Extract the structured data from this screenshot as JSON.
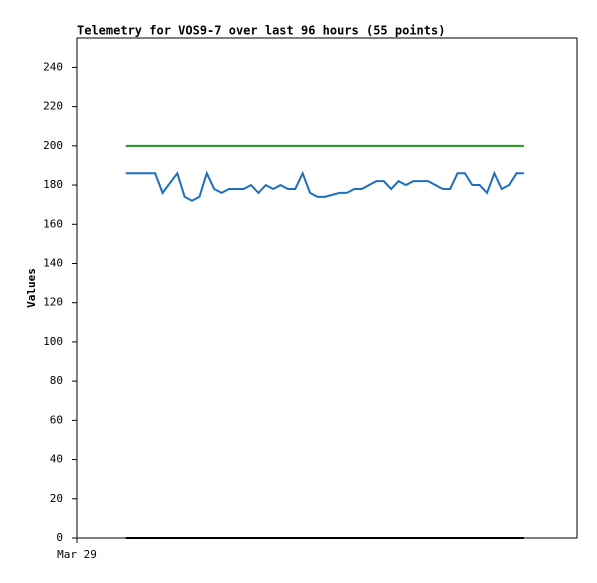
{
  "chart_data": {
    "type": "line",
    "title": "Telemetry for VOS9-7 over last 96 hours (55 points)",
    "y_label": "Values",
    "x": [
      0,
      1,
      2,
      3,
      4,
      5,
      6,
      7,
      8,
      9,
      10,
      11,
      12,
      13,
      14,
      15,
      16,
      17,
      18,
      19,
      20,
      21,
      22,
      23,
      24,
      25,
      26,
      27,
      28,
      29,
      30,
      31,
      32,
      33,
      34,
      35,
      36,
      37,
      38,
      39,
      40,
      41,
      42,
      43,
      44,
      45,
      46,
      47,
      48,
      49,
      50,
      51,
      52,
      53,
      54
    ],
    "xlim": [
      -6.6,
      61.2
    ],
    "xticks": [
      {
        "value": -6.6,
        "label": "Mar 29"
      }
    ],
    "ylim": [
      0,
      255
    ],
    "yticks": [
      0,
      20,
      40,
      60,
      80,
      100,
      120,
      140,
      160,
      180,
      200,
      220,
      240
    ],
    "grid": false,
    "series": [
      {
        "color": "#1f6fbf",
        "values": [
          186,
          186,
          186,
          186,
          186,
          176,
          181,
          186,
          174,
          172,
          174,
          186,
          178,
          176,
          178,
          178,
          178,
          180,
          176,
          180,
          178,
          180,
          178,
          178,
          186,
          176,
          174,
          174,
          175,
          176,
          176,
          178,
          178,
          180,
          182,
          182,
          178,
          182,
          180,
          182,
          182,
          182,
          180,
          178,
          178,
          186,
          186,
          180,
          180,
          176,
          186,
          178,
          180,
          186,
          186
        ]
      },
      {
        "color": "#1a9a1a",
        "values": [
          200,
          200,
          200,
          200,
          200,
          200,
          200,
          200,
          200,
          200,
          200,
          200,
          200,
          200,
          200,
          200,
          200,
          200,
          200,
          200,
          200,
          200,
          200,
          200,
          200,
          200,
          200,
          200,
          200,
          200,
          200,
          200,
          200,
          200,
          200,
          200,
          200,
          200,
          200,
          200,
          200,
          200,
          200,
          200,
          200,
          200,
          200,
          200,
          200,
          200,
          200,
          200,
          200,
          200,
          200
        ]
      },
      {
        "color": "#000000",
        "values": [
          0,
          0,
          0,
          0,
          0,
          0,
          0,
          0,
          0,
          0,
          0,
          0,
          0,
          0,
          0,
          0,
          0,
          0,
          0,
          0,
          0,
          0,
          0,
          0,
          0,
          0,
          0,
          0,
          0,
          0,
          0,
          0,
          0,
          0,
          0,
          0,
          0,
          0,
          0,
          0,
          0,
          0,
          0,
          0,
          0,
          0,
          0,
          0,
          0,
          0,
          0,
          0,
          0,
          0,
          0
        ]
      }
    ]
  }
}
